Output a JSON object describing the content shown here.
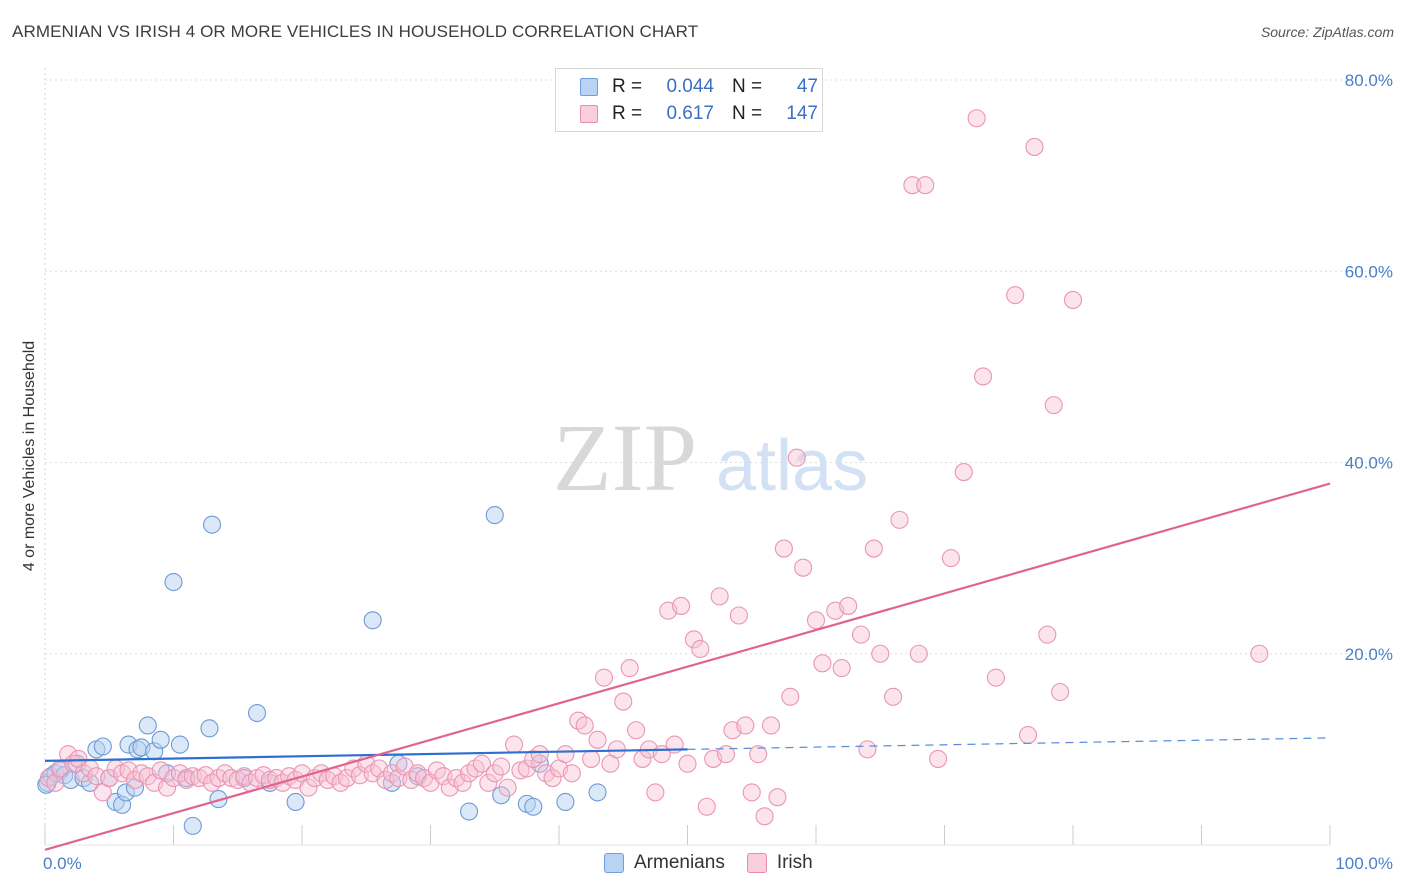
{
  "title": "ARMENIAN VS IRISH 4 OR MORE VEHICLES IN HOUSEHOLD CORRELATION CHART",
  "source": "Source: ZipAtlas.com",
  "watermark": {
    "zip": "ZIP",
    "atlas": "atlas"
  },
  "legend": {
    "rows": [
      {
        "r_label": "R =",
        "r_value": "0.044",
        "n_label": "N =",
        "n_value": "47",
        "color": "#a9c8ef",
        "border": "#6f9fdc"
      },
      {
        "r_label": "R =",
        "r_value": "0.617",
        "n_label": "N =",
        "n_value": "147",
        "color": "#f7c0d2",
        "border": "#e98bab"
      }
    ]
  },
  "bottom_legend": [
    {
      "label": "Armenians",
      "color": "#a9c8ef",
      "border": "#6f9fdc"
    },
    {
      "label": "Irish",
      "color": "#f7c0d2",
      "border": "#e98bab"
    }
  ],
  "chart_data": {
    "type": "scatter",
    "ylabel": "4 or more Vehicles in Household",
    "xlabel": "",
    "xlim": [
      0,
      100
    ],
    "ylim": [
      0,
      80
    ],
    "x_tick_labels": [
      {
        "value": 0,
        "label": "0.0%"
      },
      {
        "value": 100,
        "label": "100.0%"
      }
    ],
    "y_tick_labels": [
      {
        "value": 20,
        "label": "20.0%"
      },
      {
        "value": 40,
        "label": "40.0%"
      },
      {
        "value": 60,
        "label": "60.0%"
      },
      {
        "value": 80,
        "label": "80.0%"
      }
    ],
    "grid": true,
    "series": [
      {
        "name": "Armenians",
        "color": "#7fb0e6",
        "points": [
          [
            0.2,
            6.5
          ],
          [
            0.5,
            7.2
          ],
          [
            0.8,
            7.5
          ],
          [
            1.2,
            7.8
          ],
          [
            1.5,
            7.3
          ],
          [
            2.0,
            6.8
          ],
          [
            2.5,
            8.5
          ],
          [
            3.0,
            7.0
          ],
          [
            3.5,
            6.5
          ],
          [
            4.0,
            10.0
          ],
          [
            4.5,
            10.3
          ],
          [
            5.0,
            7.0
          ],
          [
            5.5,
            4.5
          ],
          [
            6.0,
            4.2
          ],
          [
            6.5,
            10.5
          ],
          [
            6.3,
            5.5
          ],
          [
            7.0,
            6.0
          ],
          [
            7.2,
            10.0
          ],
          [
            7.5,
            10.2
          ],
          [
            8.0,
            12.5
          ],
          [
            8.5,
            9.8
          ],
          [
            9.0,
            11.0
          ],
          [
            9.5,
            7.5
          ],
          [
            10.0,
            27.5
          ],
          [
            10.5,
            10.5
          ],
          [
            11.0,
            7.0
          ],
          [
            11.5,
            2.0
          ],
          [
            12.8,
            12.2
          ],
          [
            13.0,
            33.5
          ],
          [
            13.5,
            4.8
          ],
          [
            15.5,
            7.0
          ],
          [
            16.5,
            13.8
          ],
          [
            17.5,
            6.5
          ],
          [
            19.5,
            4.5
          ],
          [
            25.5,
            23.5
          ],
          [
            27.0,
            6.5
          ],
          [
            27.5,
            8.5
          ],
          [
            29.0,
            7.2
          ],
          [
            33.0,
            3.5
          ],
          [
            35.0,
            34.5
          ],
          [
            35.5,
            5.2
          ],
          [
            37.5,
            4.3
          ],
          [
            38.0,
            4.0
          ],
          [
            38.5,
            8.5
          ],
          [
            40.5,
            4.5
          ],
          [
            43.0,
            5.5
          ],
          [
            0.1,
            6.3
          ]
        ],
        "trend": {
          "x_start": 0,
          "y_start": 8.8,
          "x_solid_end": 50,
          "y_solid_end": 10.0,
          "x_end": 100,
          "y_end": 11.2
        }
      },
      {
        "name": "Irish",
        "color": "#f0a0bd",
        "points": [
          [
            0.3,
            7.0
          ],
          [
            0.8,
            6.5
          ],
          [
            1.2,
            8.0
          ],
          [
            1.8,
            9.5
          ],
          [
            2.2,
            8.5
          ],
          [
            2.6,
            9.0
          ],
          [
            3.0,
            7.5
          ],
          [
            3.5,
            8.0
          ],
          [
            4.0,
            7.2
          ],
          [
            4.5,
            5.5
          ],
          [
            5.0,
            7.0
          ],
          [
            5.5,
            8.0
          ],
          [
            6.0,
            7.5
          ],
          [
            6.5,
            7.8
          ],
          [
            7.0,
            6.8
          ],
          [
            7.5,
            7.5
          ],
          [
            8.0,
            7.2
          ],
          [
            8.5,
            6.5
          ],
          [
            9.0,
            7.8
          ],
          [
            9.5,
            6.0
          ],
          [
            10.0,
            7.0
          ],
          [
            10.5,
            7.5
          ],
          [
            11.0,
            6.8
          ],
          [
            11.5,
            7.2
          ],
          [
            12.0,
            7.0
          ],
          [
            12.5,
            7.3
          ],
          [
            13.0,
            6.5
          ],
          [
            13.5,
            7.0
          ],
          [
            14.0,
            7.5
          ],
          [
            14.5,
            7.0
          ],
          [
            15.0,
            6.8
          ],
          [
            15.5,
            7.2
          ],
          [
            16.0,
            6.5
          ],
          [
            16.5,
            7.0
          ],
          [
            17.0,
            7.3
          ],
          [
            17.5,
            6.8
          ],
          [
            18.0,
            7.0
          ],
          [
            18.5,
            6.5
          ],
          [
            19.0,
            7.2
          ],
          [
            19.5,
            6.8
          ],
          [
            20.0,
            7.5
          ],
          [
            20.5,
            6.0
          ],
          [
            21.0,
            7.0
          ],
          [
            21.5,
            7.5
          ],
          [
            22.0,
            6.8
          ],
          [
            22.5,
            7.2
          ],
          [
            23.0,
            6.5
          ],
          [
            23.5,
            7.0
          ],
          [
            24.0,
            8.0
          ],
          [
            24.5,
            7.3
          ],
          [
            25.0,
            8.5
          ],
          [
            25.5,
            7.5
          ],
          [
            26.0,
            8.0
          ],
          [
            26.5,
            6.8
          ],
          [
            27.0,
            7.5
          ],
          [
            27.5,
            7.0
          ],
          [
            28.0,
            8.2
          ],
          [
            28.5,
            6.8
          ],
          [
            29.0,
            7.5
          ],
          [
            29.5,
            7.0
          ],
          [
            30.0,
            6.5
          ],
          [
            30.5,
            7.8
          ],
          [
            31.0,
            7.2
          ],
          [
            31.5,
            6.0
          ],
          [
            32.0,
            7.0
          ],
          [
            32.5,
            6.5
          ],
          [
            33.0,
            7.5
          ],
          [
            33.5,
            8.0
          ],
          [
            34.0,
            8.5
          ],
          [
            34.5,
            6.5
          ],
          [
            35.0,
            7.5
          ],
          [
            35.5,
            8.2
          ],
          [
            36.0,
            6.0
          ],
          [
            36.5,
            10.5
          ],
          [
            37.0,
            7.8
          ],
          [
            37.5,
            8.0
          ],
          [
            38.0,
            9.0
          ],
          [
            38.5,
            9.5
          ],
          [
            39.0,
            7.5
          ],
          [
            39.5,
            7.0
          ],
          [
            40.0,
            8.0
          ],
          [
            40.5,
            9.5
          ],
          [
            41.0,
            7.5
          ],
          [
            41.5,
            13.0
          ],
          [
            42.0,
            12.5
          ],
          [
            42.5,
            9.0
          ],
          [
            43.0,
            11.0
          ],
          [
            43.5,
            17.5
          ],
          [
            44.0,
            8.5
          ],
          [
            44.5,
            10.0
          ],
          [
            45.0,
            15.0
          ],
          [
            45.5,
            18.5
          ],
          [
            46.0,
            12.0
          ],
          [
            46.5,
            9.0
          ],
          [
            47.0,
            10.0
          ],
          [
            47.5,
            5.5
          ],
          [
            48.0,
            9.5
          ],
          [
            48.5,
            24.5
          ],
          [
            49.0,
            10.5
          ],
          [
            49.5,
            25.0
          ],
          [
            50.0,
            8.5
          ],
          [
            50.5,
            21.5
          ],
          [
            51.0,
            20.5
          ],
          [
            51.5,
            4.0
          ],
          [
            52.0,
            9.0
          ],
          [
            52.5,
            26.0
          ],
          [
            53.0,
            9.5
          ],
          [
            53.5,
            12.0
          ],
          [
            54.0,
            24.0
          ],
          [
            54.5,
            12.5
          ],
          [
            55.0,
            5.5
          ],
          [
            55.5,
            9.5
          ],
          [
            56.0,
            3.0
          ],
          [
            56.5,
            12.5
          ],
          [
            57.0,
            5.0
          ],
          [
            57.5,
            31.0
          ],
          [
            58.0,
            15.5
          ],
          [
            58.5,
            40.5
          ],
          [
            59.0,
            29.0
          ],
          [
            60.0,
            23.5
          ],
          [
            60.5,
            19.0
          ],
          [
            61.5,
            24.5
          ],
          [
            62.0,
            18.5
          ],
          [
            62.5,
            25.0
          ],
          [
            63.5,
            22.0
          ],
          [
            64.0,
            10.0
          ],
          [
            64.5,
            31.0
          ],
          [
            65.0,
            20.0
          ],
          [
            66.0,
            15.5
          ],
          [
            66.5,
            34.0
          ],
          [
            67.5,
            69.0
          ],
          [
            68.0,
            20.0
          ],
          [
            68.5,
            69.0
          ],
          [
            69.5,
            9.0
          ],
          [
            70.5,
            30.0
          ],
          [
            71.5,
            39.0
          ],
          [
            72.5,
            76.0
          ],
          [
            73.0,
            49.0
          ],
          [
            74.0,
            17.5
          ],
          [
            75.5,
            57.5
          ],
          [
            76.5,
            11.5
          ],
          [
            77.0,
            73.0
          ],
          [
            78.0,
            22.0
          ],
          [
            78.5,
            46.0
          ],
          [
            79.0,
            16.0
          ],
          [
            80.0,
            57.0
          ],
          [
            94.5,
            20.0
          ]
        ],
        "trend": {
          "x_start": 0,
          "y_start": -0.5,
          "x_end": 100,
          "y_end": 37.8
        }
      }
    ]
  }
}
